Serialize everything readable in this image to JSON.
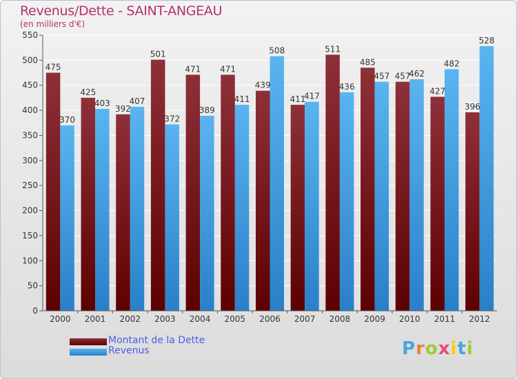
{
  "colors": {
    "title": "#b5316c",
    "debt_light": "#8e3039",
    "debt_dark": "#5c0000",
    "revenue_light": "#5ab4f0",
    "revenue_dark": "#2a80c8",
    "grid": "#ffffff",
    "tick_text": "#333333",
    "legend_text": "#4a5ee8"
  },
  "chart_data": {
    "type": "bar",
    "title": "Revenus/Dette - SAINT-ANGEAU",
    "subtitle": "(en milliers d'€)",
    "categories": [
      "2000",
      "2001",
      "2002",
      "2003",
      "2004",
      "2005",
      "2006",
      "2007",
      "2008",
      "2009",
      "2010",
      "2011",
      "2012"
    ],
    "series": [
      {
        "name": "Montant de la Dette",
        "values": [
          475,
          425,
          392,
          501,
          471,
          471,
          439,
          411,
          511,
          485,
          457,
          427,
          396
        ]
      },
      {
        "name": "Revenus",
        "values": [
          370,
          403,
          407,
          372,
          389,
          411,
          508,
          417,
          436,
          457,
          462,
          482,
          528
        ]
      }
    ],
    "ylim": [
      0,
      550
    ],
    "yticks": [
      0,
      50,
      100,
      150,
      200,
      250,
      300,
      350,
      400,
      450,
      500,
      550
    ],
    "grid": true,
    "legend_position": "bottom-left",
    "data_labels": true
  },
  "logo": {
    "letters": [
      "P",
      "r",
      "o",
      "x",
      "i",
      "t",
      "i"
    ],
    "colors": [
      "#4aa4e0",
      "#e8803a",
      "#9acd32",
      "#e84a7a",
      "#ffcc00",
      "#4aa4e0",
      "#9acd32"
    ]
  }
}
